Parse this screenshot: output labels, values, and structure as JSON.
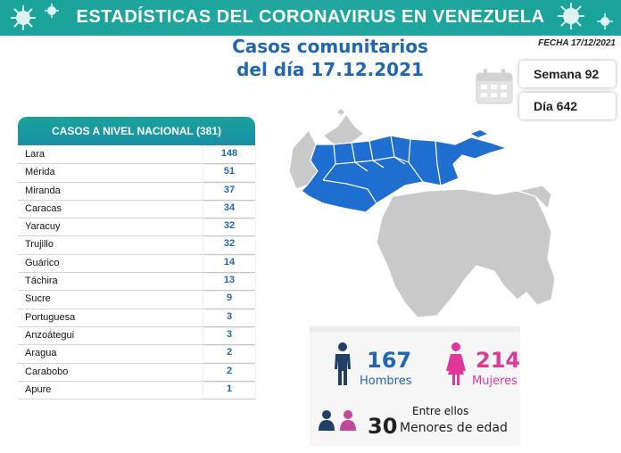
{
  "header": {
    "title": "ESTADÍSTICAS DEL CORONAVIRUS EN VENEZUELA",
    "subtitle_line1": "Casos comunitarios",
    "subtitle_line2": "del día 17.12.2021",
    "fecha": "FECHA 17/12/2021"
  },
  "calendar": {
    "semana": "Semana 92",
    "dia": "Día 642"
  },
  "table": {
    "header": "CASOS A NIVEL NACIONAL  (381)",
    "rows": [
      {
        "state": "Lara",
        "cases": "148"
      },
      {
        "state": "Mérida",
        "cases": "51"
      },
      {
        "state": "Miranda",
        "cases": "37"
      },
      {
        "state": "Caracas",
        "cases": "34"
      },
      {
        "state": "Yaracuy",
        "cases": "32"
      },
      {
        "state": "Trujillo",
        "cases": "32"
      },
      {
        "state": "Guárico",
        "cases": "14"
      },
      {
        "state": "Táchira",
        "cases": "13"
      },
      {
        "state": "Sucre",
        "cases": "9"
      },
      {
        "state": "Portuguesa",
        "cases": "3"
      },
      {
        "state": "Anzoátegui",
        "cases": "3"
      },
      {
        "state": "Aragua",
        "cases": "2"
      },
      {
        "state": "Carabobo",
        "cases": "2"
      },
      {
        "state": "Apure",
        "cases": "1"
      }
    ]
  },
  "demographics": {
    "hombres_count": "167",
    "hombres_label": "Hombres",
    "mujeres_count": "214",
    "mujeres_label": "Mujeres",
    "entre_ellos": "Entre ellos",
    "menores_count": "30",
    "menores_label": "Menores de edad"
  },
  "colors": {
    "teal": "#1aa39a",
    "blue": "#1f67b1",
    "pink": "#e0389a",
    "map_highlight": "#1e6fcf",
    "map_gray": "#c9c9c9"
  }
}
